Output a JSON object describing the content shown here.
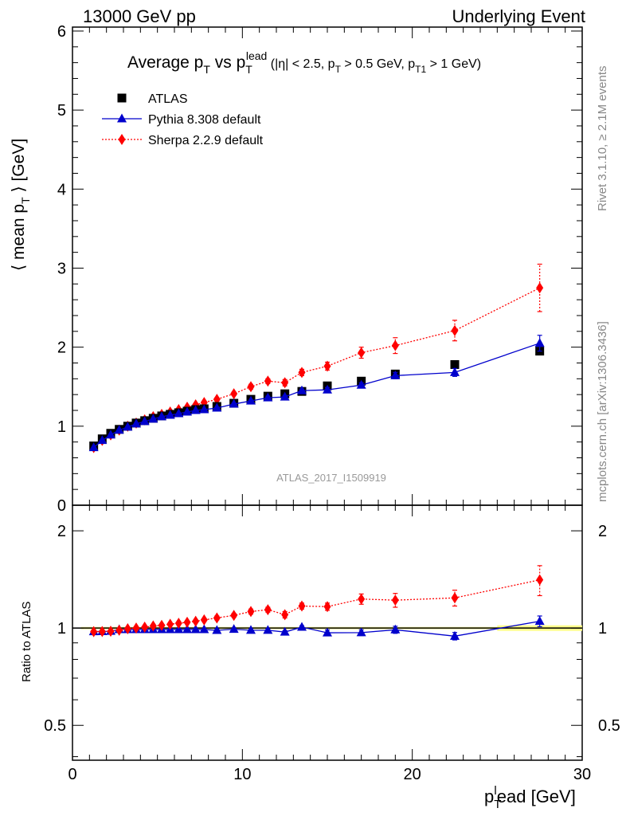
{
  "header": {
    "left": "13000 GeV pp",
    "right": "Underlying Event"
  },
  "side_text": {
    "rivet": "Rivet 3.1.10, ≥ 2.1M events",
    "mcplots": "mcplots.cern.ch [arXiv:1306.3436]"
  },
  "chart_data": [
    {
      "type": "scatter",
      "panel": "main",
      "title": "Average p_T vs p_T^lead (|η| < 2.5, p_T > 0.5 GeV, p_T1 > 1 GeV)",
      "ylabel": "⟨ mean p_T ⟩ [GeV]",
      "xlim": [
        0,
        30
      ],
      "ylim": [
        0,
        6.05
      ],
      "yticks": [
        1,
        2,
        3,
        4,
        5,
        6
      ],
      "legend_position": "top-left",
      "watermark": "ATLAS_2017_I1509919",
      "series": [
        {
          "name": "ATLAS",
          "marker": "square",
          "color": "#000000",
          "line": "none",
          "x": [
            1.25,
            1.75,
            2.25,
            2.75,
            3.25,
            3.75,
            4.25,
            4.75,
            5.25,
            5.75,
            6.25,
            6.75,
            7.25,
            7.75,
            8.5,
            9.5,
            10.5,
            11.5,
            12.5,
            13.5,
            15.0,
            17.0,
            19.0,
            22.5,
            27.5
          ],
          "y": [
            0.75,
            0.84,
            0.91,
            0.96,
            1.0,
            1.04,
            1.07,
            1.1,
            1.13,
            1.15,
            1.17,
            1.19,
            1.21,
            1.22,
            1.25,
            1.29,
            1.34,
            1.38,
            1.41,
            1.44,
            1.51,
            1.57,
            1.66,
            1.78,
            1.95
          ],
          "yerr": [
            0,
            0,
            0,
            0,
            0,
            0,
            0,
            0,
            0,
            0,
            0,
            0,
            0,
            0,
            0,
            0,
            0,
            0,
            0,
            0,
            0,
            0,
            0,
            0,
            0
          ]
        },
        {
          "name": "Pythia 8.308 default",
          "marker": "triangle",
          "color": "#0000cc",
          "line": "solid",
          "x": [
            1.25,
            1.75,
            2.25,
            2.75,
            3.25,
            3.75,
            4.25,
            4.75,
            5.25,
            5.75,
            6.25,
            6.75,
            7.25,
            7.75,
            8.5,
            9.5,
            10.5,
            11.5,
            12.5,
            13.5,
            15.0,
            17.0,
            19.0,
            22.5,
            27.5
          ],
          "y": [
            0.73,
            0.82,
            0.89,
            0.95,
            0.99,
            1.03,
            1.06,
            1.09,
            1.12,
            1.14,
            1.16,
            1.18,
            1.2,
            1.21,
            1.23,
            1.28,
            1.32,
            1.36,
            1.37,
            1.45,
            1.46,
            1.52,
            1.64,
            1.68,
            2.05
          ],
          "yerr": [
            0,
            0,
            0,
            0,
            0,
            0,
            0,
            0,
            0,
            0,
            0,
            0,
            0,
            0,
            0.01,
            0.01,
            0.01,
            0.02,
            0.02,
            0.02,
            0.03,
            0.03,
            0.04,
            0.05,
            0.1
          ]
        },
        {
          "name": "Sherpa 2.2.9 default",
          "marker": "diamond",
          "color": "#ff0000",
          "line": "dotted",
          "x": [
            1.25,
            1.75,
            2.25,
            2.75,
            3.25,
            3.75,
            4.25,
            4.75,
            5.25,
            5.75,
            6.25,
            6.75,
            7.25,
            7.75,
            8.5,
            9.5,
            10.5,
            11.5,
            12.5,
            13.5,
            15.0,
            17.0,
            19.0,
            22.5,
            27.5
          ],
          "y": [
            0.73,
            0.82,
            0.89,
            0.95,
            1.0,
            1.04,
            1.08,
            1.12,
            1.15,
            1.18,
            1.21,
            1.24,
            1.27,
            1.3,
            1.34,
            1.41,
            1.5,
            1.57,
            1.55,
            1.68,
            1.76,
            1.93,
            2.02,
            2.21,
            2.75
          ],
          "yerr": [
            0,
            0,
            0,
            0,
            0,
            0,
            0,
            0,
            0,
            0,
            0,
            0,
            0.01,
            0.01,
            0.02,
            0.02,
            0.03,
            0.03,
            0.04,
            0.04,
            0.05,
            0.07,
            0.1,
            0.13,
            0.3
          ]
        }
      ]
    },
    {
      "type": "scatter",
      "panel": "ratio",
      "ylabel": "Ratio to ATLAS",
      "xlabel": "p_T^lead [GeV]",
      "xlim": [
        0,
        30
      ],
      "ylim": [
        0.39,
        2.4
      ],
      "yscale": "log",
      "yticks": [
        0.5,
        1,
        2
      ],
      "xticks": [
        0,
        10,
        20,
        30
      ],
      "reference_band_color": "#ffff80",
      "series": [
        {
          "name": "Pythia 8.308 default",
          "marker": "triangle",
          "color": "#0000cc",
          "line": "solid",
          "x": [
            1.25,
            1.75,
            2.25,
            2.75,
            3.25,
            3.75,
            4.25,
            4.75,
            5.25,
            5.75,
            6.25,
            6.75,
            7.25,
            7.75,
            8.5,
            9.5,
            10.5,
            11.5,
            12.5,
            13.5,
            15.0,
            17.0,
            19.0,
            22.5,
            27.5
          ],
          "y": [
            0.975,
            0.976,
            0.978,
            0.99,
            0.99,
            0.99,
            0.99,
            0.99,
            0.99,
            0.99,
            0.99,
            0.99,
            0.99,
            0.99,
            0.984,
            0.992,
            0.985,
            0.985,
            0.972,
            1.007,
            0.967,
            0.968,
            0.988,
            0.944,
            1.05
          ],
          "yerr": [
            0,
            0,
            0,
            0,
            0,
            0,
            0,
            0,
            0,
            0,
            0,
            0,
            0,
            0,
            0.01,
            0.01,
            0.01,
            0.01,
            0.01,
            0.01,
            0.02,
            0.02,
            0.025,
            0.025,
            0.04
          ]
        },
        {
          "name": "Sherpa 2.2.9 default",
          "marker": "diamond",
          "color": "#ff0000",
          "line": "dotted",
          "x": [
            1.25,
            1.75,
            2.25,
            2.75,
            3.25,
            3.75,
            4.25,
            4.75,
            5.25,
            5.75,
            6.25,
            6.75,
            7.25,
            7.75,
            8.5,
            9.5,
            10.5,
            11.5,
            12.5,
            13.5,
            15.0,
            17.0,
            19.0,
            22.5,
            27.5
          ],
          "y": [
            0.975,
            0.976,
            0.978,
            0.985,
            0.995,
            1.0,
            1.007,
            1.015,
            1.02,
            1.028,
            1.035,
            1.042,
            1.05,
            1.06,
            1.075,
            1.095,
            1.125,
            1.14,
            1.1,
            1.17,
            1.165,
            1.23,
            1.22,
            1.24,
            1.41
          ],
          "yerr": [
            0,
            0,
            0,
            0,
            0,
            0,
            0,
            0,
            0,
            0,
            0,
            0,
            0.01,
            0.01,
            0.015,
            0.015,
            0.02,
            0.02,
            0.025,
            0.025,
            0.03,
            0.045,
            0.06,
            0.07,
            0.15
          ]
        }
      ]
    }
  ]
}
